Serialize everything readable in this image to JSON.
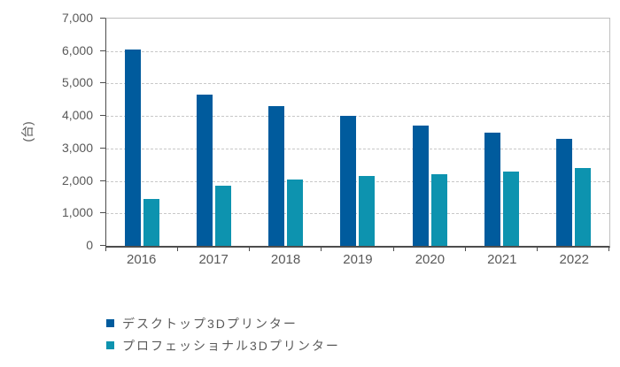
{
  "chart_data": {
    "type": "bar",
    "title": "",
    "xlabel": "",
    "ylabel": "(台)",
    "categories": [
      "2016",
      "2017",
      "2018",
      "2019",
      "2020",
      "2021",
      "2022"
    ],
    "series": [
      {
        "name": "デスクトップ3Dプリンター",
        "color": "#005B9D",
        "values": [
          6050,
          4650,
          4300,
          4000,
          3700,
          3500,
          3300
        ]
      },
      {
        "name": "プロフェッショナル3Dプリンター",
        "color": "#0D93AF",
        "values": [
          1450,
          1850,
          2050,
          2150,
          2200,
          2300,
          2400
        ]
      }
    ],
    "ylim": [
      0,
      7000
    ],
    "ytick_step": 1000,
    "ytick_labels": [
      "0",
      "1,000",
      "2,000",
      "3,000",
      "4,000",
      "5,000",
      "6,000",
      "7,000"
    ],
    "grid": "horizontal-dashed",
    "legend_position": "bottom-left"
  },
  "colors": {
    "axis": "#4d4d4d",
    "plot_border": "#bfbfbf",
    "gridline": "#c8c8c8",
    "text": "#595959",
    "background": "#ffffff",
    "series_desktop": "#005B9D",
    "series_professional": "#0D93AF"
  }
}
